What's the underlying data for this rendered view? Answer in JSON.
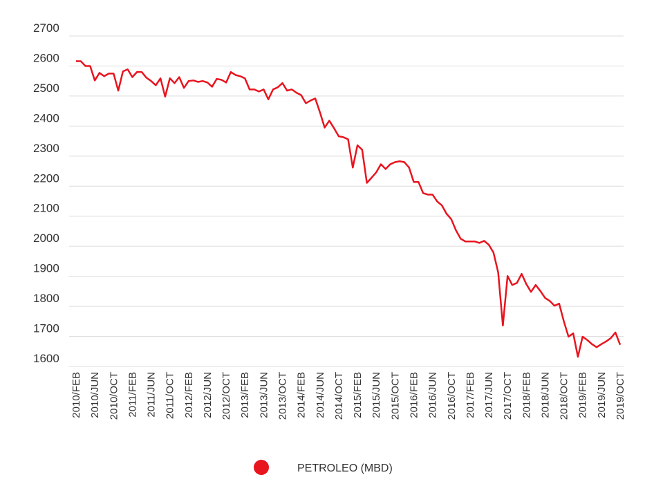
{
  "chart_data": {
    "type": "line",
    "categories": [
      "2010/FEB",
      null,
      null,
      null,
      "2010/JUN",
      null,
      null,
      null,
      "2010/OCT",
      null,
      null,
      null,
      "2011/FEB",
      null,
      null,
      null,
      "2011/JUN",
      null,
      null,
      null,
      "2011/OCT",
      null,
      null,
      null,
      "2012/FEB",
      null,
      null,
      null,
      "2012/JUN",
      null,
      null,
      null,
      "2012/OCT",
      null,
      null,
      null,
      "2013/FEB",
      null,
      null,
      null,
      "2013/JUN",
      null,
      null,
      null,
      "2013/OCT",
      null,
      null,
      null,
      "2014/FEB",
      null,
      null,
      null,
      "2014/JUN",
      null,
      null,
      null,
      "2014/OCT",
      null,
      null,
      null,
      "2015/FEB",
      null,
      null,
      null,
      "2015/JUN",
      null,
      null,
      null,
      "2015/OCT",
      null,
      null,
      null,
      "2016/FEB",
      null,
      null,
      null,
      "2016/JUN",
      null,
      null,
      null,
      "2016/OCT",
      null,
      null,
      null,
      "2017/FEB",
      null,
      null,
      null,
      "2017/JUN",
      null,
      null,
      null,
      "2017/OCT",
      null,
      null,
      null,
      "2018/FEB",
      null,
      null,
      null,
      "2018/JUN",
      null,
      null,
      null,
      "2018/OCT",
      null,
      null,
      null,
      "2019/FEB",
      null,
      null,
      null,
      "2019/JUN",
      null,
      null,
      null,
      "2019/OCT"
    ],
    "series": [
      {
        "name": "PETROLEO (MBD)",
        "color": "#e8141e",
        "values": [
          2616,
          2616,
          2600,
          2600,
          2552,
          2577,
          2566,
          2575,
          2575,
          2518,
          2582,
          2589,
          2563,
          2580,
          2580,
          2561,
          2550,
          2536,
          2559,
          2498,
          2559,
          2543,
          2563,
          2527,
          2550,
          2552,
          2547,
          2550,
          2545,
          2531,
          2557,
          2554,
          2545,
          2580,
          2570,
          2566,
          2559,
          2522,
          2522,
          2515,
          2522,
          2489,
          2522,
          2529,
          2543,
          2518,
          2522,
          2511,
          2503,
          2476,
          2485,
          2492,
          2446,
          2395,
          2418,
          2393,
          2366,
          2363,
          2356,
          2262,
          2336,
          2321,
          2211,
          2228,
          2246,
          2273,
          2257,
          2273,
          2280,
          2283,
          2280,
          2262,
          2214,
          2214,
          2177,
          2172,
          2172,
          2149,
          2136,
          2108,
          2090,
          2053,
          2025,
          2016,
          2016,
          2016,
          2011,
          2018,
          2005,
          1979,
          1913,
          1736,
          1901,
          1871,
          1878,
          1908,
          1874,
          1848,
          1871,
          1851,
          1828,
          1818,
          1802,
          1809,
          1750,
          1699,
          1710,
          1632,
          1699,
          1688,
          1674,
          1664,
          1674,
          1683,
          1694,
          1713,
          1672
        ]
      }
    ],
    "ylim": [
      1600,
      2700
    ],
    "yticks": [
      1600,
      1700,
      1800,
      1900,
      2000,
      2100,
      2200,
      2300,
      2400,
      2500,
      2600,
      2700
    ],
    "grid": true
  }
}
